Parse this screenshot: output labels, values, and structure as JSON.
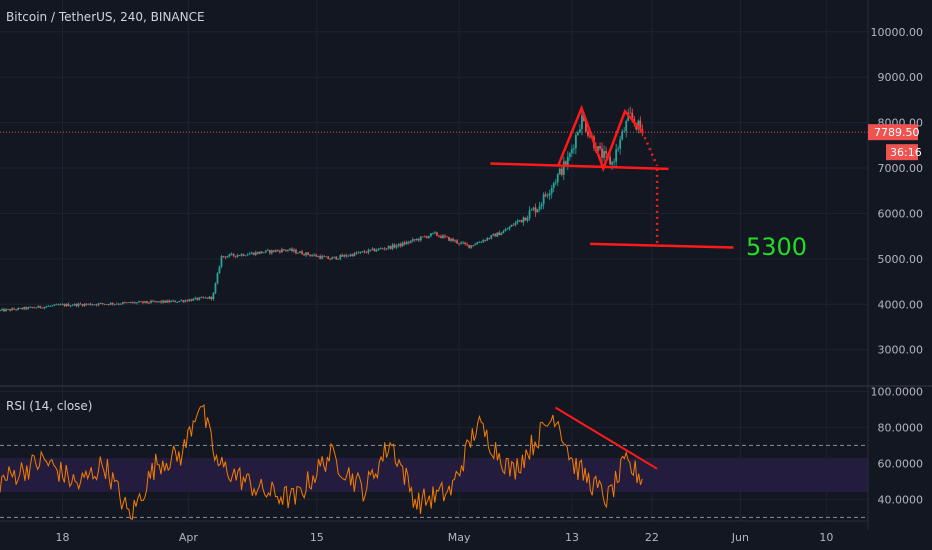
{
  "chart_data": [
    {
      "type": "candlestick",
      "title": "Bitcoin / TetherUS, 240, BINANCE",
      "yticks": [
        3000,
        4000,
        5000,
        6000,
        7000,
        8000,
        9000,
        10000
      ],
      "ylim": [
        2200,
        10700
      ],
      "xticks": [
        "18",
        "Apr",
        "15",
        "May",
        "13",
        "22",
        "Jun",
        "10"
      ],
      "last_price": "7789.50",
      "countdown": "36:16",
      "target_label": "5300",
      "trend_anchors": [
        {
          "t": 0.0,
          "price": 3860
        },
        {
          "t": 0.07,
          "price": 3980
        },
        {
          "t": 0.2,
          "price": 4060
        },
        {
          "t": 0.245,
          "price": 4150
        },
        {
          "t": 0.255,
          "price": 5050
        },
        {
          "t": 0.33,
          "price": 5200
        },
        {
          "t": 0.38,
          "price": 5000
        },
        {
          "t": 0.46,
          "price": 5300
        },
        {
          "t": 0.5,
          "price": 5550
        },
        {
          "t": 0.54,
          "price": 5280
        },
        {
          "t": 0.58,
          "price": 5600
        },
        {
          "t": 0.62,
          "price": 6150
        },
        {
          "t": 0.655,
          "price": 7200
        },
        {
          "t": 0.67,
          "price": 8100
        },
        {
          "t": 0.69,
          "price": 7350
        },
        {
          "t": 0.705,
          "price": 7100
        },
        {
          "t": 0.725,
          "price": 8150
        },
        {
          "t": 0.74,
          "price": 7800
        }
      ],
      "annotations": {
        "neckline": [
          {
            "t": 0.565,
            "price": 7100
          },
          {
            "t": 0.77,
            "price": 6980
          }
        ],
        "double_top": [
          {
            "t": 0.643,
            "price": 7050
          },
          {
            "t": 0.67,
            "price": 8320
          },
          {
            "t": 0.695,
            "price": 6990
          },
          {
            "t": 0.72,
            "price": 8250
          },
          {
            "t": 0.74,
            "price": 7800
          }
        ],
        "projection_dotted": [
          {
            "t": 0.74,
            "price": 7800
          },
          {
            "t": 0.757,
            "price": 7050
          }
        ],
        "drop_dotted": [
          {
            "t": 0.757,
            "price": 6980
          },
          {
            "t": 0.757,
            "price": 5320
          }
        ],
        "target_line": [
          {
            "t": 0.68,
            "price": 5330
          },
          {
            "t": 0.845,
            "price": 5250
          }
        ]
      }
    },
    {
      "type": "line",
      "title": "RSI (14, close)",
      "yticks": [
        40,
        60,
        80,
        100
      ],
      "ylim": [
        28,
        103
      ],
      "bands": [
        30,
        70
      ],
      "rsi_anchors": [
        {
          "t": 0.0,
          "value": 50
        },
        {
          "t": 0.05,
          "value": 62
        },
        {
          "t": 0.09,
          "value": 48
        },
        {
          "t": 0.12,
          "value": 60
        },
        {
          "t": 0.15,
          "value": 30
        },
        {
          "t": 0.18,
          "value": 60
        },
        {
          "t": 0.21,
          "value": 65
        },
        {
          "t": 0.23,
          "value": 95
        },
        {
          "t": 0.25,
          "value": 60
        },
        {
          "t": 0.3,
          "value": 45
        },
        {
          "t": 0.34,
          "value": 40
        },
        {
          "t": 0.38,
          "value": 65
        },
        {
          "t": 0.42,
          "value": 45
        },
        {
          "t": 0.45,
          "value": 72
        },
        {
          "t": 0.48,
          "value": 38
        },
        {
          "t": 0.52,
          "value": 45
        },
        {
          "t": 0.55,
          "value": 82
        },
        {
          "t": 0.59,
          "value": 55
        },
        {
          "t": 0.64,
          "value": 88
        },
        {
          "t": 0.66,
          "value": 60
        },
        {
          "t": 0.7,
          "value": 40
        },
        {
          "t": 0.72,
          "value": 60
        },
        {
          "t": 0.74,
          "value": 52
        }
      ],
      "trendline": [
        {
          "t": 0.64,
          "value": 91
        },
        {
          "t": 0.757,
          "value": 57
        }
      ]
    }
  ]
}
